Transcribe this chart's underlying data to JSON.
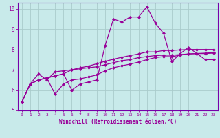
{
  "xlabel": "Windchill (Refroidissement éolien,°C)",
  "bg_color": "#c8eaea",
  "grid_color": "#aacccc",
  "line_color": "#990099",
  "spine_color": "#7700aa",
  "xlim": [
    -0.5,
    23.5
  ],
  "ylim": [
    5.0,
    10.3
  ],
  "yticks": [
    5,
    6,
    7,
    8,
    9,
    10
  ],
  "xticks": [
    0,
    1,
    2,
    3,
    4,
    5,
    6,
    7,
    8,
    9,
    10,
    11,
    12,
    13,
    14,
    15,
    16,
    17,
    18,
    19,
    20,
    21,
    22,
    23
  ],
  "series1_x": [
    0,
    1,
    2,
    3,
    4,
    5,
    6,
    7,
    8,
    9,
    10,
    11,
    12,
    13,
    14,
    15,
    16,
    17,
    18,
    19,
    20,
    21,
    22,
    23
  ],
  "series1_y": [
    5.4,
    6.3,
    6.5,
    6.6,
    6.7,
    6.8,
    6.0,
    6.3,
    6.4,
    6.5,
    8.2,
    9.5,
    9.35,
    9.6,
    9.6,
    10.1,
    9.3,
    8.8,
    7.4,
    7.8,
    8.1,
    7.8,
    7.5,
    7.5
  ],
  "series2_x": [
    0,
    1,
    2,
    3,
    4,
    5,
    6,
    7,
    8,
    9,
    10,
    11,
    12,
    13,
    14,
    15,
    16,
    17,
    18,
    19,
    20,
    21,
    22,
    23
  ],
  "series2_y": [
    5.4,
    6.3,
    6.8,
    6.5,
    6.9,
    6.95,
    7.0,
    7.05,
    7.1,
    7.15,
    7.25,
    7.35,
    7.45,
    7.5,
    7.6,
    7.65,
    7.7,
    7.72,
    7.72,
    7.75,
    7.78,
    7.8,
    7.82,
    7.85
  ],
  "series3_x": [
    0,
    1,
    2,
    3,
    4,
    5,
    6,
    7,
    8,
    9,
    10,
    11,
    12,
    13,
    14,
    15,
    16,
    17,
    18,
    19,
    20,
    21,
    22,
    23
  ],
  "series3_y": [
    5.4,
    6.3,
    6.5,
    6.6,
    5.8,
    6.3,
    6.5,
    6.55,
    6.65,
    6.75,
    6.95,
    7.1,
    7.2,
    7.28,
    7.38,
    7.5,
    7.6,
    7.65,
    7.65,
    7.72,
    7.78,
    7.8,
    7.8,
    7.82
  ],
  "series4_x": [
    0,
    1,
    2,
    3,
    4,
    5,
    6,
    7,
    8,
    9,
    10,
    11,
    12,
    13,
    14,
    15,
    16,
    17,
    18,
    19,
    20,
    21,
    22,
    23
  ],
  "series4_y": [
    5.4,
    6.3,
    6.5,
    6.6,
    6.7,
    6.8,
    7.0,
    7.1,
    7.18,
    7.3,
    7.42,
    7.52,
    7.62,
    7.7,
    7.78,
    7.88,
    7.88,
    7.95,
    7.95,
    7.98,
    8.0,
    8.0,
    8.0,
    8.0
  ]
}
